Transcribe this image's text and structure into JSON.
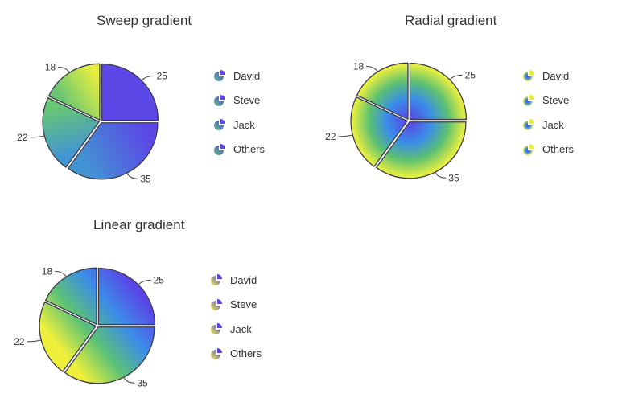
{
  "chart_data": [
    {
      "type": "pie",
      "title": "Sweep gradient",
      "gradient": "sweep",
      "categories": [
        "David",
        "Steve",
        "Jack",
        "Others"
      ],
      "values": [
        25,
        35,
        22,
        18
      ],
      "gradient_colors": [
        "#e8ef3f",
        "#5ac27a",
        "#3c8ae8",
        "#5b48e6"
      ],
      "legend_placement": "right"
    },
    {
      "type": "pie",
      "title": "Radial gradient",
      "gradient": "radial",
      "categories": [
        "David",
        "Steve",
        "Jack",
        "Others"
      ],
      "values": [
        25,
        35,
        22,
        18
      ],
      "gradient_colors": [
        "#5a3ee6",
        "#3a8ee8",
        "#5cc072",
        "#e8ee40"
      ],
      "legend_placement": "right"
    },
    {
      "type": "pie",
      "title": "Linear gradient",
      "gradient": "linear",
      "categories": [
        "David",
        "Steve",
        "Jack",
        "Others"
      ],
      "values": [
        25,
        35,
        22,
        18
      ],
      "gradient_colors": [
        "#eef03c",
        "#5cc276",
        "#3c8ce8",
        "#5a44e6"
      ],
      "legend_placement": "right"
    }
  ]
}
